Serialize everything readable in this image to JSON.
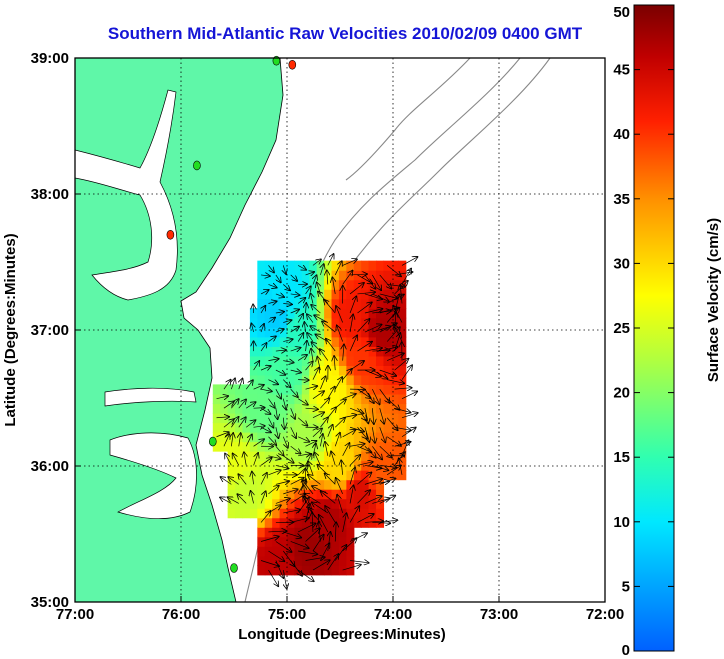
{
  "chart_data": {
    "type": "heatmap",
    "title": "Southern Mid-Atlantic Raw Velocities 2010/02/09 0400 GMT",
    "xlabel": "Longitude (Degrees:Minutes)",
    "ylabel": "Latitude (Degrees:Minutes)",
    "xlim": [
      -77,
      -72
    ],
    "ylim": [
      35,
      39
    ],
    "x_ticks": [
      {
        "value": -77,
        "label": "77:00"
      },
      {
        "value": -76,
        "label": "76:00"
      },
      {
        "value": -75,
        "label": "75:00"
      },
      {
        "value": -74,
        "label": "74:00"
      },
      {
        "value": -73,
        "label": "73:00"
      },
      {
        "value": -72,
        "label": "72:00"
      }
    ],
    "y_ticks": [
      {
        "value": 35,
        "label": "35:00"
      },
      {
        "value": 36,
        "label": "36:00"
      },
      {
        "value": 37,
        "label": "37:00"
      },
      {
        "value": 38,
        "label": "38:00"
      },
      {
        "value": 39,
        "label": "39:00"
      }
    ],
    "grid": true,
    "colorbar": {
      "label": "Surface Velocity (cm/s)",
      "range": [
        0,
        50
      ],
      "ticks": [
        0,
        5,
        10,
        15,
        20,
        25,
        30,
        35,
        40,
        45,
        50
      ],
      "placement": "right"
    },
    "field": {
      "description_units": "cm/s",
      "region_lon": [
        -75.7,
        -73.9
      ],
      "region_lat": [
        35.2,
        37.5
      ],
      "samples": [
        {
          "lon": -75.0,
          "lat": 37.3,
          "speed": 10
        },
        {
          "lon": -75.1,
          "lat": 37.1,
          "speed": 8
        },
        {
          "lon": -74.9,
          "lat": 37.0,
          "speed": 14
        },
        {
          "lon": -74.4,
          "lat": 37.1,
          "speed": 42
        },
        {
          "lon": -74.1,
          "lat": 37.0,
          "speed": 47
        },
        {
          "lon": -74.3,
          "lat": 36.8,
          "speed": 40
        },
        {
          "lon": -74.6,
          "lat": 36.6,
          "speed": 28
        },
        {
          "lon": -75.0,
          "lat": 36.7,
          "speed": 16
        },
        {
          "lon": -75.2,
          "lat": 36.4,
          "speed": 18
        },
        {
          "lon": -74.8,
          "lat": 36.2,
          "speed": 22
        },
        {
          "lon": -74.5,
          "lat": 36.0,
          "speed": 30
        },
        {
          "lon": -74.3,
          "lat": 35.8,
          "speed": 44
        },
        {
          "lon": -74.6,
          "lat": 35.6,
          "speed": 47
        },
        {
          "lon": -74.8,
          "lat": 35.4,
          "speed": 48
        },
        {
          "lon": -75.1,
          "lat": 35.3,
          "speed": 46
        },
        {
          "lon": -75.4,
          "lat": 35.8,
          "speed": 24
        },
        {
          "lon": -75.5,
          "lat": 36.0,
          "speed": 26
        },
        {
          "lon": -74.1,
          "lat": 35.9,
          "speed": 38
        }
      ]
    },
    "stations": [
      {
        "lon": -74.95,
        "lat": 38.95,
        "color": "#ff2a00"
      },
      {
        "lon": -75.1,
        "lat": 38.98,
        "color": "#22dd22"
      },
      {
        "lon": -75.85,
        "lat": 38.21,
        "color": "#22dd22"
      },
      {
        "lon": -76.1,
        "lat": 37.7,
        "color": "#ff2a00"
      },
      {
        "lon": -75.7,
        "lat": 36.18,
        "color": "#22dd22"
      },
      {
        "lon": -75.5,
        "lat": 35.25,
        "color": "#22dd22"
      }
    ],
    "colors": {
      "land": "#5ff7a8",
      "ocean": "#ffffff",
      "title": "#1515d6",
      "bathymetry": "#888888"
    }
  }
}
